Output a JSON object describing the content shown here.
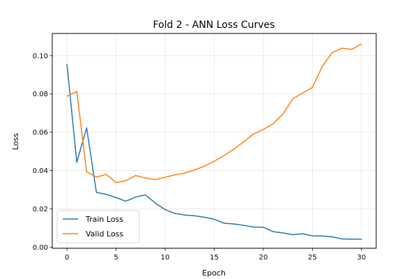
{
  "chart_data": {
    "type": "line",
    "title": "Fold 2 - ANN Loss Curves",
    "xlabel": "Epoch",
    "ylabel": "Loss",
    "xlim": [
      -1.5,
      31.5
    ],
    "ylim": [
      -0.0006,
      0.1116
    ],
    "xticks": [
      0,
      5,
      10,
      15,
      20,
      25,
      30
    ],
    "xtick_labels": [
      "0",
      "5",
      "10",
      "15",
      "20",
      "25",
      "30"
    ],
    "yticks": [
      0.0,
      0.02,
      0.04,
      0.06,
      0.08,
      0.1
    ],
    "ytick_labels": [
      "0.00",
      "0.02",
      "0.04",
      "0.06",
      "0.08",
      "0.10"
    ],
    "grid": true,
    "legend_position": "lower-left",
    "x": [
      0,
      1,
      2,
      3,
      4,
      5,
      6,
      7,
      8,
      9,
      10,
      11,
      12,
      13,
      14,
      15,
      16,
      17,
      18,
      19,
      20,
      21,
      22,
      23,
      24,
      25,
      26,
      27,
      28,
      29,
      30
    ],
    "series": [
      {
        "name": "Train Loss",
        "color": "#1f77b4",
        "values": [
          0.0955,
          0.0443,
          0.0623,
          0.0286,
          0.0276,
          0.0259,
          0.024,
          0.0262,
          0.0273,
          0.023,
          0.0196,
          0.0176,
          0.0168,
          0.0164,
          0.0156,
          0.0146,
          0.0125,
          0.0121,
          0.0114,
          0.0105,
          0.0104,
          0.0081,
          0.0074,
          0.0065,
          0.007,
          0.0059,
          0.0058,
          0.0054,
          0.0043,
          0.0042,
          0.0042
        ]
      },
      {
        "name": "Valid Loss",
        "color": "#ff7f0e",
        "values": [
          0.0788,
          0.0813,
          0.0393,
          0.0366,
          0.038,
          0.0337,
          0.0347,
          0.0374,
          0.0361,
          0.0353,
          0.0365,
          0.0378,
          0.0387,
          0.0403,
          0.0423,
          0.0449,
          0.0478,
          0.0512,
          0.055,
          0.0591,
          0.0614,
          0.0645,
          0.0695,
          0.0775,
          0.0805,
          0.0834,
          0.0943,
          0.1015,
          0.1039,
          0.1033,
          0.1061
        ]
      }
    ]
  }
}
